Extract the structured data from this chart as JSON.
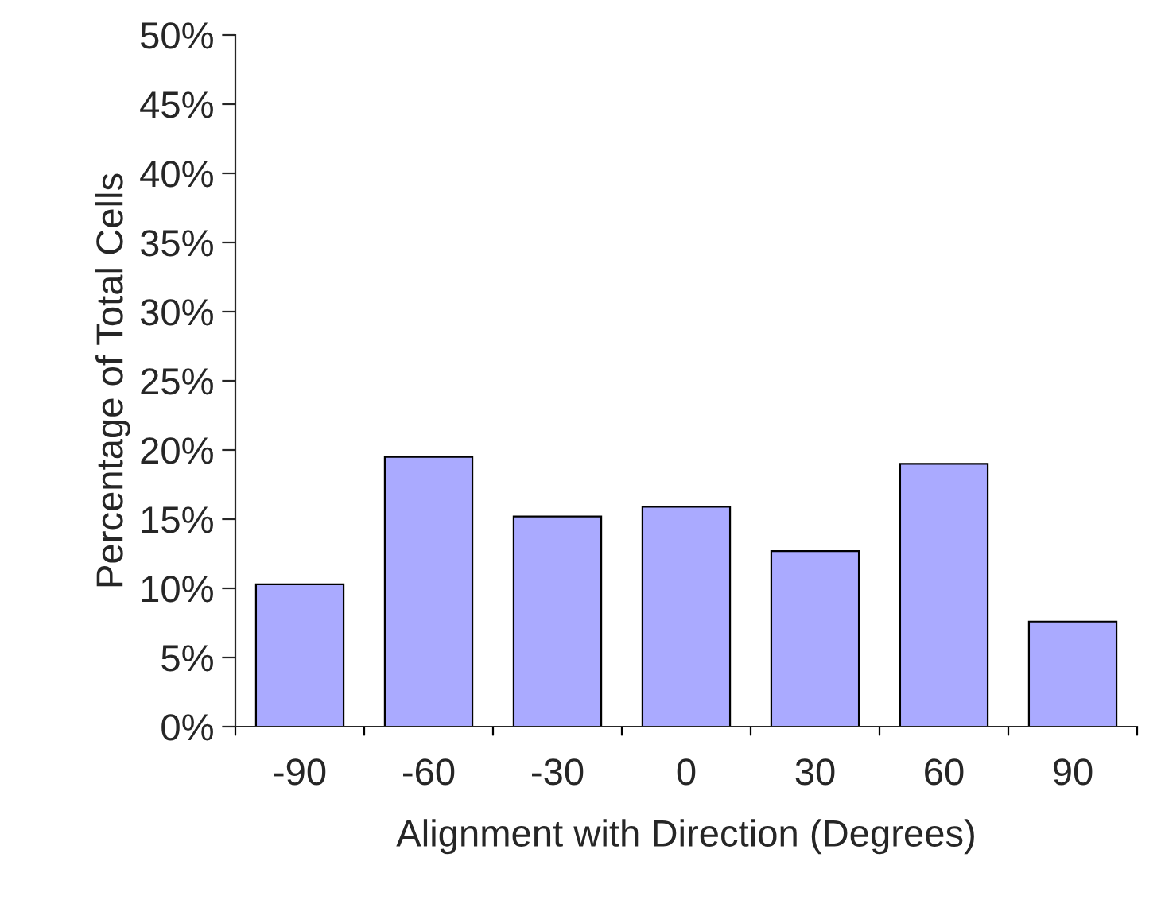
{
  "chart_data": {
    "type": "bar",
    "xlabel": "Alignment with Direction (Degrees)",
    "ylabel": "Percentage of Total Cells",
    "categories": [
      "-90",
      "-60",
      "-30",
      "0",
      "30",
      "60",
      "90"
    ],
    "values": [
      10.3,
      19.5,
      15.2,
      15.9,
      12.7,
      19.0,
      7.6
    ],
    "color": "#aaaaff",
    "ylim": [
      0,
      50
    ],
    "yticks": [
      {
        "value": 0,
        "label": "0%"
      },
      {
        "value": 5,
        "label": "5%"
      },
      {
        "value": 10,
        "label": "10%"
      },
      {
        "value": 15,
        "label": "15%"
      },
      {
        "value": 20,
        "label": "20%"
      },
      {
        "value": 25,
        "label": "25%"
      },
      {
        "value": 30,
        "label": "30%"
      },
      {
        "value": 35,
        "label": "35%"
      },
      {
        "value": 40,
        "label": "40%"
      },
      {
        "value": 45,
        "label": "45%"
      },
      {
        "value": 50,
        "label": "50%"
      }
    ],
    "grid": false
  }
}
